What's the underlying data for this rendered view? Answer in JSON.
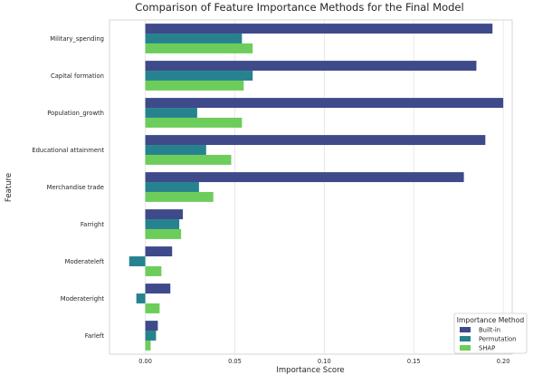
{
  "chart_data": {
    "type": "bar",
    "orientation": "horizontal",
    "title": "Comparison of Feature Importance Methods for the Final Model",
    "xlabel": "Importance Score",
    "ylabel": "Feature",
    "xlim": [
      -0.02,
      0.205
    ],
    "xticks": [
      0.0,
      0.05,
      0.1,
      0.15,
      0.2
    ],
    "xtick_labels": [
      "0.00",
      "0.05",
      "0.10",
      "0.15",
      "0.20"
    ],
    "grid": true,
    "legend_title": "Importance Method",
    "legend_position": "lower-right",
    "categories": [
      "Military_spending",
      "Capital formation",
      "Population_growth",
      "Educational attainment",
      "Merchandise trade",
      "Farright",
      "Moderateleft",
      "Moderateright",
      "Farleft"
    ],
    "series": [
      {
        "name": "Built-in",
        "color": "#3e4a89",
        "values": [
          0.194,
          0.185,
          0.2,
          0.19,
          0.178,
          0.021,
          0.015,
          0.014,
          0.007
        ]
      },
      {
        "name": "Permutation",
        "color": "#26828e",
        "values": [
          0.054,
          0.06,
          0.029,
          0.034,
          0.03,
          0.019,
          -0.009,
          -0.005,
          0.006
        ]
      },
      {
        "name": "SHAP",
        "color": "#6ccd5a",
        "values": [
          0.06,
          0.055,
          0.054,
          0.048,
          0.038,
          0.02,
          0.009,
          0.008,
          0.003
        ]
      }
    ]
  }
}
